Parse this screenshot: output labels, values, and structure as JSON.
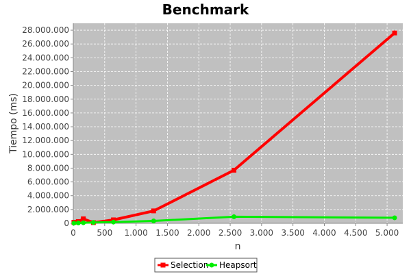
{
  "chart_data": {
    "type": "line",
    "title": "Benchmark",
    "xlabel": "n",
    "ylabel": "Tiempo (ms)",
    "xlim": [
      0,
      5250
    ],
    "ylim": [
      0,
      29000000
    ],
    "x_ticks": [
      0,
      500,
      1000,
      1500,
      2000,
      2500,
      3000,
      3500,
      4000,
      4500,
      5000
    ],
    "x_tick_labels": [
      "0",
      "500",
      "1.000",
      "1.500",
      "2.000",
      "2.500",
      "3.000",
      "3.500",
      "4.000",
      "4.500",
      "5.000"
    ],
    "y_ticks": [
      0,
      2000000,
      4000000,
      6000000,
      8000000,
      10000000,
      12000000,
      14000000,
      16000000,
      18000000,
      20000000,
      22000000,
      24000000,
      26000000,
      28000000
    ],
    "y_tick_labels": [
      "0",
      "2.000.000",
      "4.000.000",
      "6.000.000",
      "8.000.000",
      "10.000.000",
      "12.000.000",
      "14.000.000",
      "16.000.000",
      "18.000.000",
      "20.000.000",
      "22.000.000",
      "24.000.000",
      "26.000.000",
      "28.000.000"
    ],
    "grid": true,
    "legend_position": "bottom",
    "background_color": "#c0c0c0",
    "series": [
      {
        "name": "Selection",
        "color": "#ff0000",
        "marker": "square",
        "points": [
          [
            10,
            150000
          ],
          [
            80,
            250000
          ],
          [
            160,
            650000
          ],
          [
            320,
            100000
          ],
          [
            640,
            500000
          ],
          [
            1280,
            1800000
          ],
          [
            2560,
            7700000
          ],
          [
            5120,
            27600000
          ]
        ]
      },
      {
        "name": "Heapsort",
        "color": "#00ee00",
        "marker": "circle",
        "points": [
          [
            10,
            20000
          ],
          [
            80,
            50000
          ],
          [
            160,
            80000
          ],
          [
            320,
            120000
          ],
          [
            640,
            180000
          ],
          [
            1280,
            350000
          ],
          [
            2560,
            950000
          ],
          [
            5120,
            800000
          ]
        ]
      }
    ]
  }
}
